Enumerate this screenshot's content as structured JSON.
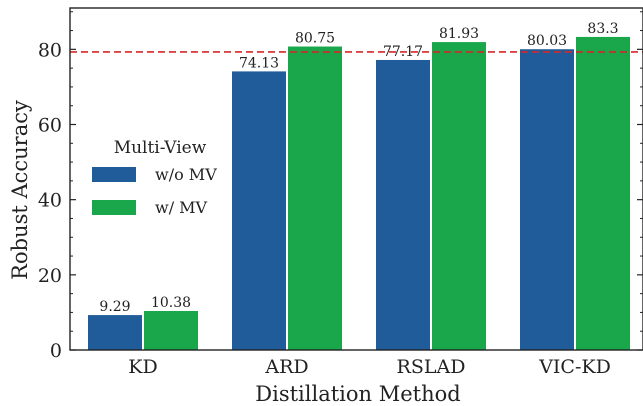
{
  "chart_data": {
    "type": "bar",
    "xlabel": "Distillation Method",
    "ylabel": "Robust Accuracy",
    "categories": [
      "KD",
      "ARD",
      "RSLAD",
      "VIC-KD"
    ],
    "series": [
      {
        "name": "w/o MV",
        "color": "#1f5c99",
        "values": [
          9.29,
          74.13,
          77.17,
          80.03
        ],
        "labels": [
          "9.29",
          "74.13",
          "77.17",
          "80.03"
        ]
      },
      {
        "name": "w/ MV",
        "color": "#1aa64a",
        "values": [
          10.38,
          80.75,
          81.93,
          83.3
        ],
        "labels": [
          "10.38",
          "80.75",
          "81.93",
          "83.3"
        ]
      }
    ],
    "ylim": [
      0,
      91
    ],
    "yticks": [
      0,
      20,
      40,
      60,
      80
    ],
    "reference_line": {
      "value": 79.3,
      "color": "#d62728",
      "style": "dashed"
    },
    "legend": {
      "title": "Multi-View",
      "placement": "center-left"
    },
    "grid": false
  }
}
